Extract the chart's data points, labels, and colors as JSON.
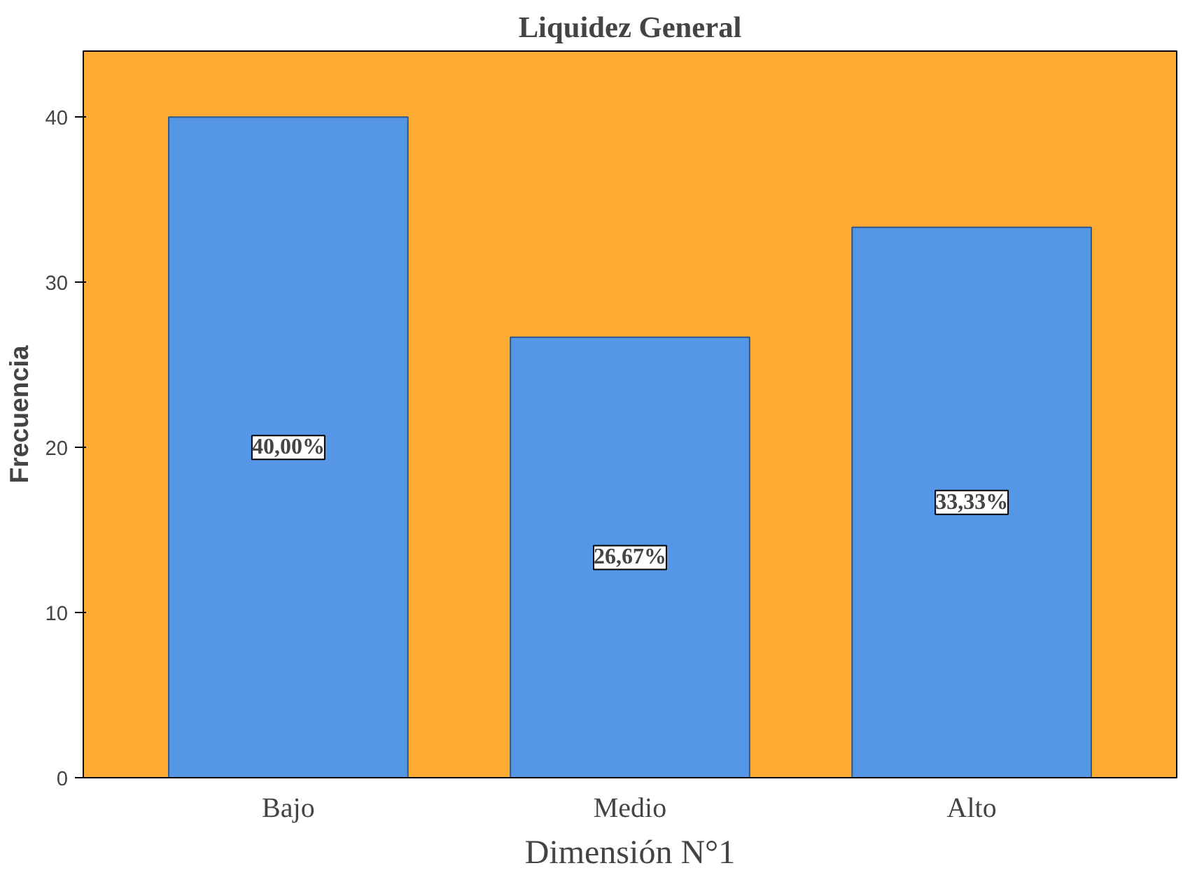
{
  "chart_data": {
    "type": "bar",
    "title": "Liquidez General",
    "xlabel": "Dimensión N°1",
    "ylabel": "Frecuencia",
    "categories": [
      "Bajo",
      "Medio",
      "Alto"
    ],
    "values": [
      40,
      26.67,
      33.33
    ],
    "value_labels": [
      "40,00%",
      "26,67%",
      "33,33%"
    ],
    "color": "#5596e6",
    "ylim": [
      0,
      44
    ],
    "yticks": [
      0,
      10,
      20,
      30,
      40
    ],
    "grid": false
  }
}
